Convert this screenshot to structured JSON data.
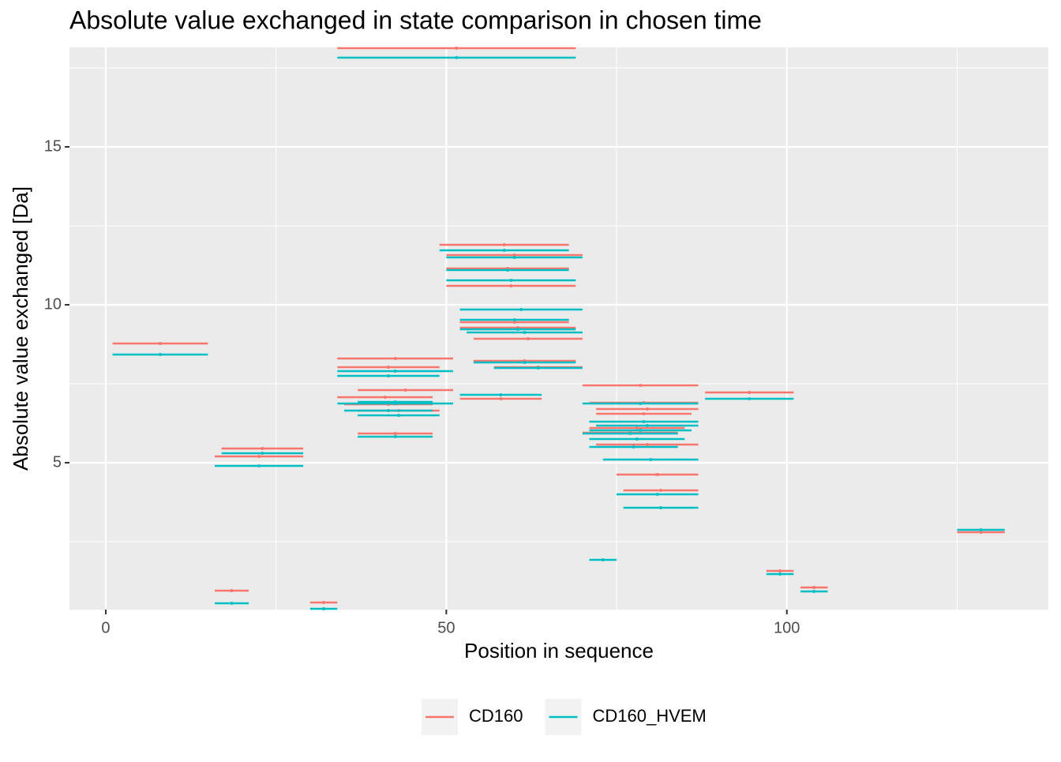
{
  "chart_data": {
    "type": "segment",
    "title": "Absolute value exchanged in state comparison in chosen time",
    "x_label": "Position in sequence",
    "y_label": "Absolute value exchanged [Da]",
    "xlim": [
      -5.33,
      138.4
    ],
    "ylim": [
      0.35,
      18.15
    ],
    "xticks": [
      0,
      50,
      100
    ],
    "yticks": [
      5,
      10,
      15
    ],
    "xminor": [
      25,
      75,
      125
    ],
    "yminor": [
      2.5,
      7.5,
      12.5,
      17.5
    ],
    "grid": true,
    "legend": "bottom",
    "series": [
      {
        "name": "CD160",
        "color": "#f8766d",
        "start": [
          1,
          17,
          16,
          16,
          30,
          34,
          34,
          34,
          37,
          34,
          35,
          37,
          37,
          49,
          50,
          50,
          50,
          52,
          52,
          54,
          54,
          57,
          52,
          70,
          71,
          72,
          72,
          71,
          70,
          72,
          75,
          76,
          88,
          97,
          102,
          125
        ],
        "end": [
          15,
          29,
          29,
          21,
          34,
          69,
          51,
          49,
          51,
          48,
          48,
          49,
          48,
          68,
          70,
          68,
          69,
          68,
          69,
          70,
          69,
          70,
          64,
          87,
          87,
          87,
          86,
          85,
          84,
          87,
          87,
          87,
          101,
          101,
          106,
          132
        ],
        "values": [
          8.775,
          5.45,
          5.2,
          0.95,
          0.575,
          18.125,
          8.3,
          8.025,
          7.3,
          7.075,
          6.85,
          6.65,
          5.925,
          11.9,
          11.575,
          11.15,
          10.6,
          9.45,
          9.275,
          8.925,
          8.225,
          8.025,
          7.025,
          7.45,
          6.9,
          6.7,
          6.55,
          6.1,
          5.95,
          5.575,
          4.625,
          4.125,
          7.225,
          1.575,
          1.05,
          2.8
        ]
      },
      {
        "name": "CD160_HVEM",
        "color": "#00bfc4",
        "start": [
          1,
          17,
          16,
          16,
          30,
          34,
          34,
          34,
          34,
          37,
          35,
          37,
          37,
          49,
          50,
          50,
          50,
          52,
          52,
          52,
          53,
          54,
          57,
          52,
          70,
          71,
          72,
          71,
          70,
          71,
          71,
          73,
          75,
          76,
          71,
          88,
          97,
          102,
          125
        ],
        "end": [
          15,
          29,
          29,
          21,
          34,
          69,
          51,
          49,
          51,
          48,
          48,
          49,
          48,
          68,
          70,
          68,
          69,
          70,
          68,
          69,
          70,
          69,
          70,
          64,
          87,
          87,
          87,
          86,
          84,
          85,
          84,
          87,
          87,
          87,
          75,
          101,
          101,
          106,
          132
        ],
        "values": [
          8.425,
          5.3,
          4.9,
          0.55,
          0.375,
          17.825,
          7.9,
          7.75,
          6.875,
          6.925,
          6.65,
          6.5,
          5.825,
          11.725,
          11.5,
          11.1,
          10.775,
          9.85,
          9.525,
          9.225,
          9.125,
          8.175,
          8.0,
          7.15,
          6.875,
          6.3,
          6.175,
          6.025,
          5.925,
          5.75,
          5.5,
          5.1,
          4.0,
          3.575,
          1.925,
          7.025,
          1.475,
          0.925,
          2.875
        ]
      }
    ]
  }
}
